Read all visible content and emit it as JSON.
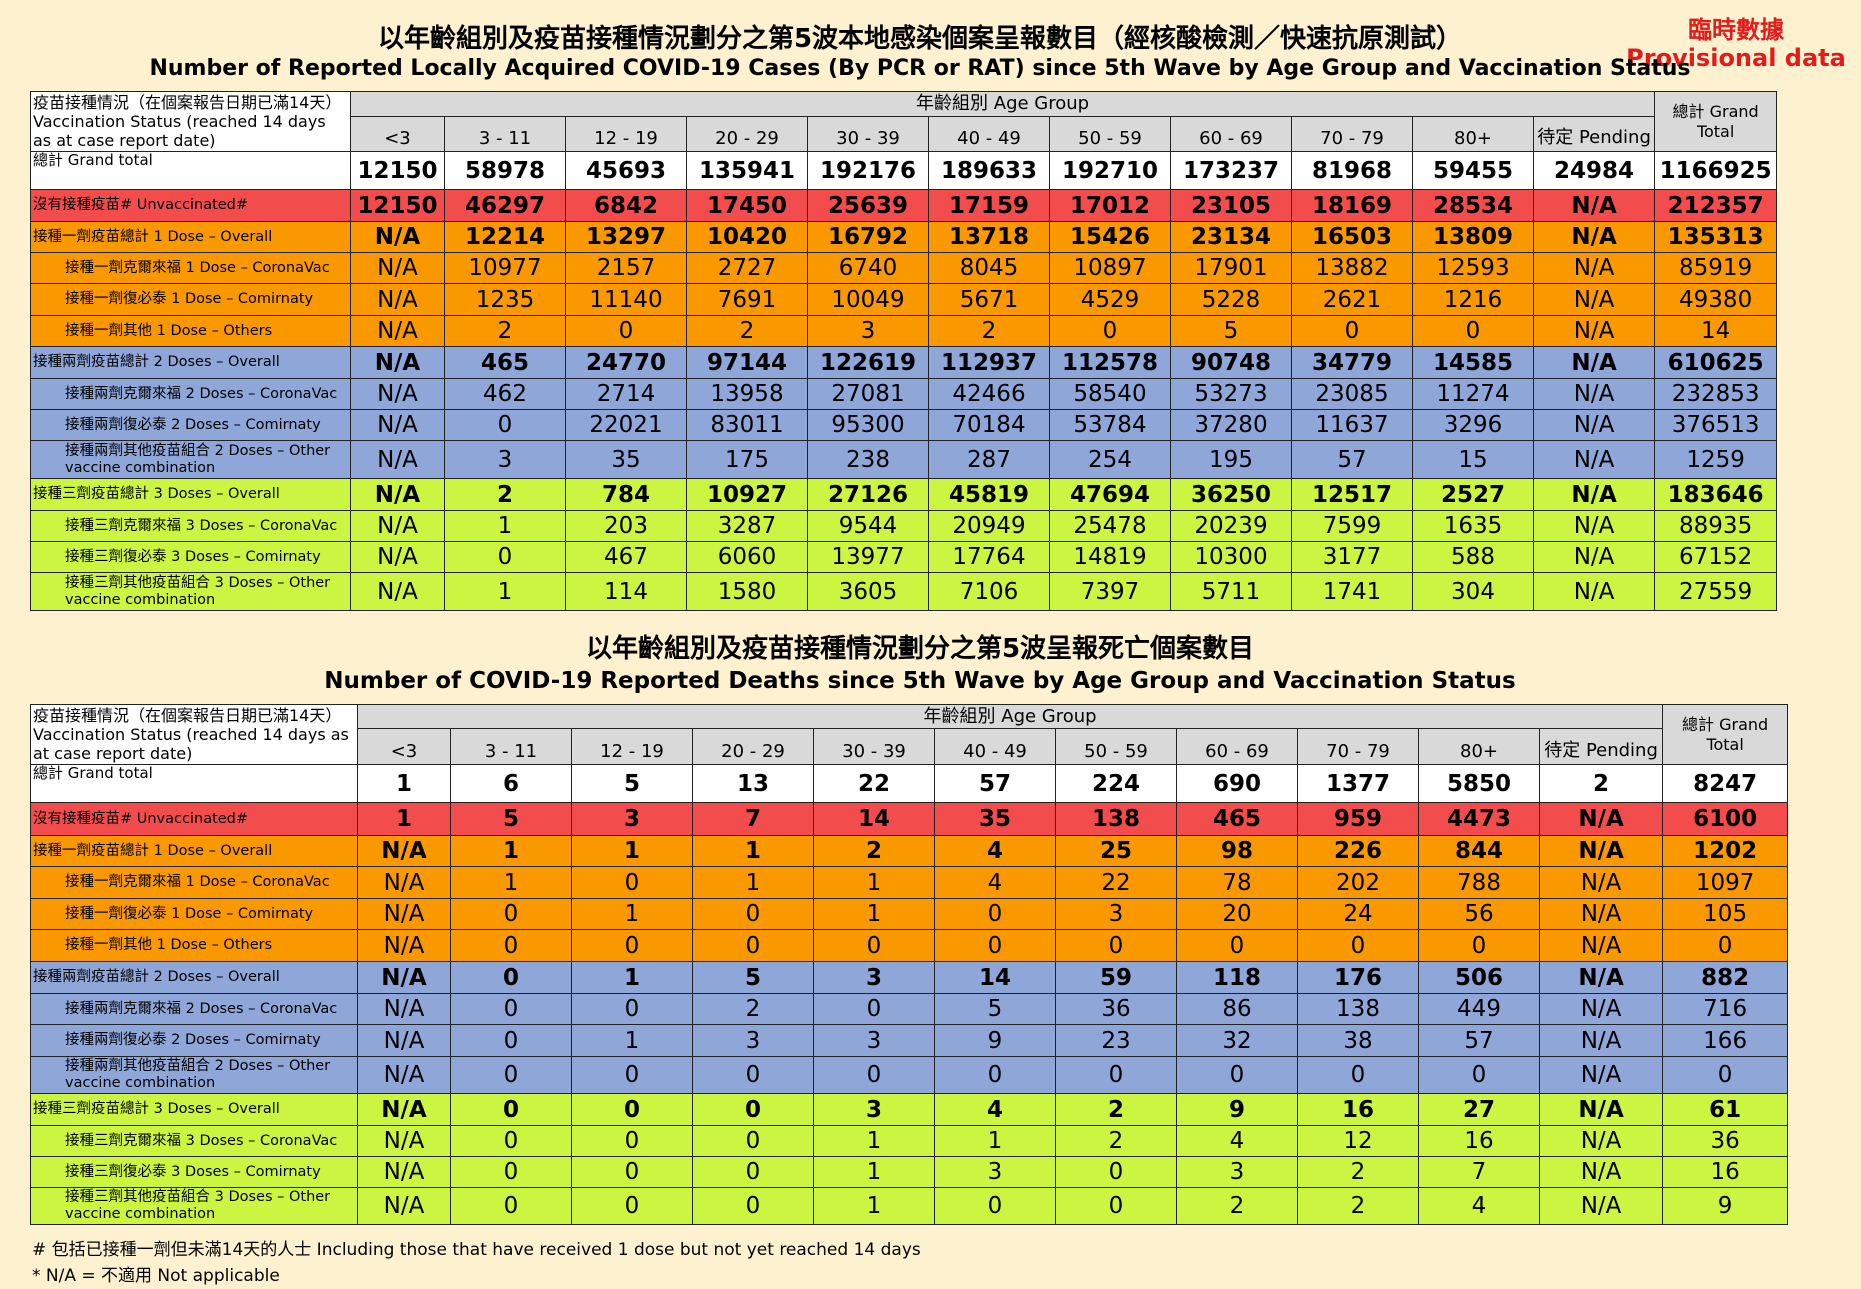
{
  "provisional": {
    "zh": "臨時數據",
    "en": "Provisional data"
  },
  "cases": {
    "title_zh": "以年齡組別及疫苗接種情況劃分之第5波本地感染個案呈報數目（經核酸檢測／快速抗原測試）",
    "title_en": "Number of Reported Locally Acquired COVID-19 Cases (By PCR or RAT) since 5th Wave by Age Group and Vaccination Status",
    "status_header": "疫苗接種情況（在個案報告日期已滿14天）Vaccination Status (reached 14 days as at case report date)",
    "age_group_header": "年齡組別 Age Group",
    "grand_total_header": "總計 Grand Total",
    "age_groups": [
      "<3",
      "3 - 11",
      "12 - 19",
      "20 - 29",
      "30 - 39",
      "40 - 49",
      "50 - 59",
      "60 - 69",
      "70 - 79",
      "80+",
      "待定 Pending"
    ],
    "rows": [
      {
        "label": "總計 Grand total",
        "values": [
          "12150",
          "58978",
          "45693",
          "135941",
          "192176",
          "189633",
          "192710",
          "173237",
          "81968",
          "59455",
          "24984",
          "1166925"
        ]
      },
      {
        "label": "沒有接種疫苗# Unvaccinated#",
        "values": [
          "12150",
          "46297",
          "6842",
          "17450",
          "25639",
          "17159",
          "17012",
          "23105",
          "18169",
          "28534",
          "N/A",
          "212357"
        ]
      },
      {
        "label": "接種一劑疫苗總計 1 Dose – Overall",
        "values": [
          "N/A",
          "12214",
          "13297",
          "10420",
          "16792",
          "13718",
          "15426",
          "23134",
          "16503",
          "13809",
          "N/A",
          "135313"
        ]
      },
      {
        "label": "接種一劑克爾來福 1 Dose – CoronaVac",
        "values": [
          "N/A",
          "10977",
          "2157",
          "2727",
          "6740",
          "8045",
          "10897",
          "17901",
          "13882",
          "12593",
          "N/A",
          "85919"
        ]
      },
      {
        "label": "接種一劑復必泰 1 Dose – Comirnaty",
        "values": [
          "N/A",
          "1235",
          "11140",
          "7691",
          "10049",
          "5671",
          "4529",
          "5228",
          "2621",
          "1216",
          "N/A",
          "49380"
        ]
      },
      {
        "label": "接種一劑其他 1 Dose – Others",
        "values": [
          "N/A",
          "2",
          "0",
          "2",
          "3",
          "2",
          "0",
          "5",
          "0",
          "0",
          "N/A",
          "14"
        ]
      },
      {
        "label": "接種兩劑疫苗總計 2 Doses – Overall",
        "values": [
          "N/A",
          "465",
          "24770",
          "97144",
          "122619",
          "112937",
          "112578",
          "90748",
          "34779",
          "14585",
          "N/A",
          "610625"
        ]
      },
      {
        "label": "接種兩劑克爾來福 2 Doses – CoronaVac",
        "values": [
          "N/A",
          "462",
          "2714",
          "13958",
          "27081",
          "42466",
          "58540",
          "53273",
          "23085",
          "11274",
          "N/A",
          "232853"
        ]
      },
      {
        "label": "接種兩劑復必泰 2 Doses – Comirnaty",
        "values": [
          "N/A",
          "0",
          "22021",
          "83011",
          "95300",
          "70184",
          "53784",
          "37280",
          "11637",
          "3296",
          "N/A",
          "376513"
        ]
      },
      {
        "label": "接種兩劑其他疫苗組合 2 Doses – Other vaccine combination",
        "values": [
          "N/A",
          "3",
          "35",
          "175",
          "238",
          "287",
          "254",
          "195",
          "57",
          "15",
          "N/A",
          "1259"
        ]
      },
      {
        "label": "接種三劑疫苗總計 3 Doses – Overall",
        "values": [
          "N/A",
          "2",
          "784",
          "10927",
          "27126",
          "45819",
          "47694",
          "36250",
          "12517",
          "2527",
          "N/A",
          "183646"
        ]
      },
      {
        "label": "接種三劑克爾來福 3 Doses – CoronaVac",
        "values": [
          "N/A",
          "1",
          "203",
          "3287",
          "9544",
          "20949",
          "25478",
          "20239",
          "7599",
          "1635",
          "N/A",
          "88935"
        ]
      },
      {
        "label": "接種三劑復必泰 3 Doses – Comirnaty",
        "values": [
          "N/A",
          "0",
          "467",
          "6060",
          "13977",
          "17764",
          "14819",
          "10300",
          "3177",
          "588",
          "N/A",
          "67152"
        ]
      },
      {
        "label": "接種三劑其他疫苗組合 3 Doses – Other vaccine combination",
        "values": [
          "N/A",
          "1",
          "114",
          "1580",
          "3605",
          "7106",
          "7397",
          "5711",
          "1741",
          "304",
          "N/A",
          "27559"
        ]
      }
    ]
  },
  "deaths": {
    "title_zh": "以年齡組別及疫苗接種情況劃分之第5波呈報死亡個案數目",
    "title_en": "Number of COVID-19 Reported Deaths since 5th Wave by Age Group and Vaccination Status",
    "status_header": "疫苗接種情況（在個案報告日期已滿14天）Vaccination Status (reached 14 days as at case report date)",
    "age_group_header": "年齡組別 Age Group",
    "grand_total_header": "總計 Grand Total",
    "age_groups": [
      "<3",
      "3 - 11",
      "12 - 19",
      "20 - 29",
      "30 - 39",
      "40 - 49",
      "50 - 59",
      "60 - 69",
      "70 - 79",
      "80+",
      "待定 Pending"
    ],
    "rows": [
      {
        "label": "總計 Grand total",
        "values": [
          "1",
          "6",
          "5",
          "13",
          "22",
          "57",
          "224",
          "690",
          "1377",
          "5850",
          "2",
          "8247"
        ]
      },
      {
        "label": "沒有接種疫苗# Unvaccinated#",
        "values": [
          "1",
          "5",
          "3",
          "7",
          "14",
          "35",
          "138",
          "465",
          "959",
          "4473",
          "N/A",
          "6100"
        ]
      },
      {
        "label": "接種一劑疫苗總計 1 Dose – Overall",
        "values": [
          "N/A",
          "1",
          "1",
          "1",
          "2",
          "4",
          "25",
          "98",
          "226",
          "844",
          "N/A",
          "1202"
        ]
      },
      {
        "label": "接種一劑克爾來福 1 Dose – CoronaVac",
        "values": [
          "N/A",
          "1",
          "0",
          "1",
          "1",
          "4",
          "22",
          "78",
          "202",
          "788",
          "N/A",
          "1097"
        ]
      },
      {
        "label": "接種一劑復必泰 1 Dose – Comirnaty",
        "values": [
          "N/A",
          "0",
          "1",
          "0",
          "1",
          "0",
          "3",
          "20",
          "24",
          "56",
          "N/A",
          "105"
        ]
      },
      {
        "label": "接種一劑其他 1 Dose – Others",
        "values": [
          "N/A",
          "0",
          "0",
          "0",
          "0",
          "0",
          "0",
          "0",
          "0",
          "0",
          "N/A",
          "0"
        ]
      },
      {
        "label": "接種兩劑疫苗總計 2 Doses – Overall",
        "values": [
          "N/A",
          "0",
          "1",
          "5",
          "3",
          "14",
          "59",
          "118",
          "176",
          "506",
          "N/A",
          "882"
        ]
      },
      {
        "label": "接種兩劑克爾來福 2 Doses – CoronaVac",
        "values": [
          "N/A",
          "0",
          "0",
          "2",
          "0",
          "5",
          "36",
          "86",
          "138",
          "449",
          "N/A",
          "716"
        ]
      },
      {
        "label": "接種兩劑復必泰 2 Doses – Comirnaty",
        "values": [
          "N/A",
          "0",
          "1",
          "3",
          "3",
          "9",
          "23",
          "32",
          "38",
          "57",
          "N/A",
          "166"
        ]
      },
      {
        "label": "接種兩劑其他疫苗組合 2 Doses – Other vaccine combination",
        "values": [
          "N/A",
          "0",
          "0",
          "0",
          "0",
          "0",
          "0",
          "0",
          "0",
          "0",
          "N/A",
          "0"
        ]
      },
      {
        "label": "接種三劑疫苗總計 3 Doses – Overall",
        "values": [
          "N/A",
          "0",
          "0",
          "0",
          "3",
          "4",
          "2",
          "9",
          "16",
          "27",
          "N/A",
          "61"
        ]
      },
      {
        "label": "接種三劑克爾來福 3 Doses – CoronaVac",
        "values": [
          "N/A",
          "0",
          "0",
          "0",
          "1",
          "1",
          "2",
          "4",
          "12",
          "16",
          "N/A",
          "36"
        ]
      },
      {
        "label": "接種三劑復必泰 3 Doses – Comirnaty",
        "values": [
          "N/A",
          "0",
          "0",
          "0",
          "1",
          "3",
          "0",
          "3",
          "2",
          "7",
          "N/A",
          "16"
        ]
      },
      {
        "label": "接種三劑其他疫苗組合 3 Doses – Other vaccine combination",
        "values": [
          "N/A",
          "0",
          "0",
          "0",
          "1",
          "0",
          "0",
          "2",
          "2",
          "4",
          "N/A",
          "9"
        ]
      }
    ]
  },
  "footnotes": [
    "# 包括已接種一劑但未滿14天的人士 Including those that have received 1 dose but not yet reached 14 days",
    "* N/A = 不適用 Not applicable"
  ]
}
